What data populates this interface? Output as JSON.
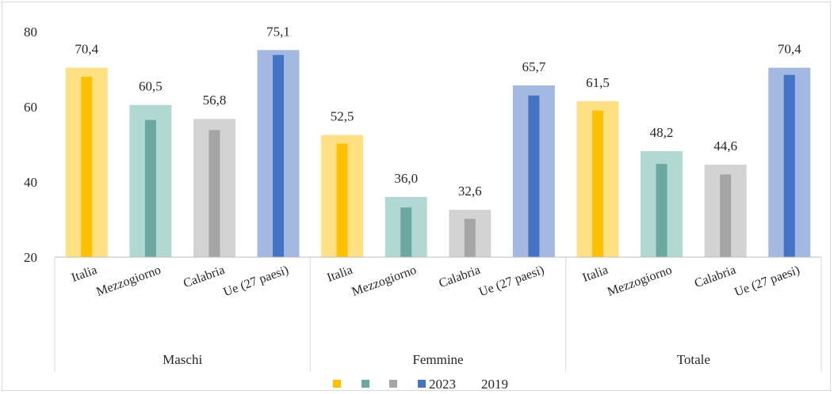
{
  "chart_data": {
    "type": "bar",
    "groups": [
      "Maschi",
      "Femmine",
      "Totale"
    ],
    "categories": [
      "Italia",
      "Mezzogiorno",
      "Calabria",
      "Ue (27 paesi)"
    ],
    "ylim": [
      20,
      80
    ],
    "yticks": [
      20,
      40,
      60,
      80
    ],
    "grid": false,
    "legend_position": "bottom",
    "series": [
      {
        "name": "2023",
        "role": "wide-background-bars",
        "values": [
          [
            70.4,
            60.5,
            56.8,
            75.1
          ],
          [
            52.5,
            36.0,
            32.6,
            65.7
          ],
          [
            61.5,
            48.2,
            44.6,
            70.4
          ]
        ],
        "labels": [
          [
            "70,4",
            "60,5",
            "56,8",
            "75,1"
          ],
          [
            "52,5",
            "36,0",
            "32,6",
            "65,7"
          ],
          [
            "61,5",
            "48,2",
            "44,6",
            "70,4"
          ]
        ]
      },
      {
        "name": "2019",
        "role": "narrow-foreground-bars",
        "values": [
          [
            68.0,
            56.5,
            53.8,
            73.8
          ],
          [
            50.2,
            33.2,
            30.2,
            63.0
          ],
          [
            59.0,
            44.8,
            42.0,
            68.5
          ]
        ]
      }
    ],
    "colors": {
      "wide": [
        "#ffe083",
        "#b2d8d3",
        "#d3d3d3",
        "#a3b9e2"
      ],
      "narrow": [
        "#ffc000",
        "#6aa8a0",
        "#a5a5a5",
        "#4472c4"
      ]
    },
    "legend": {
      "swatches": [
        {
          "color": "#ffc000",
          "label": ""
        },
        {
          "color": "#6aa8a0",
          "label": ""
        },
        {
          "color": "#a5a5a5",
          "label": ""
        },
        {
          "color": "#4472c4",
          "label": "2023"
        },
        {
          "color": "",
          "label": "2019"
        }
      ]
    }
  }
}
